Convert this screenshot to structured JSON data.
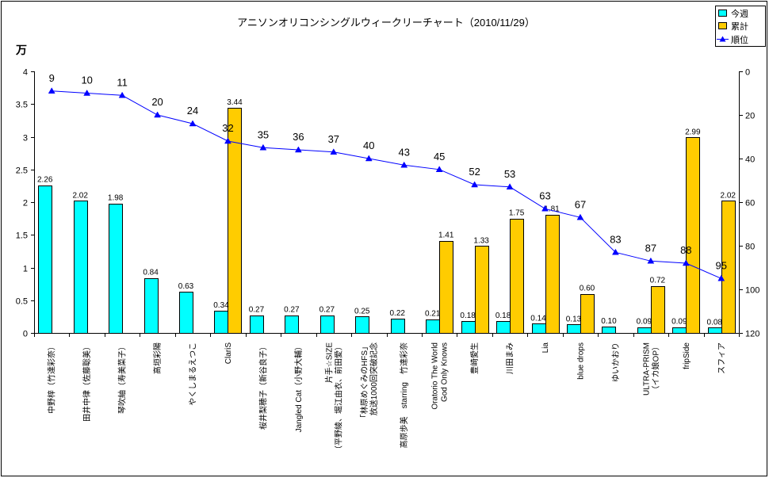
{
  "chart_data": {
    "type": "bar",
    "title": "アニソンオリコンシングルウィークリーチャート（2010/11/29）",
    "y_unit_label": "万",
    "ylim": [
      0,
      4
    ],
    "yticks": [
      "0",
      "0.5",
      "1",
      "1.5",
      "2",
      "2.5",
      "3",
      "3.5",
      "4"
    ],
    "y2lim": [
      0,
      120
    ],
    "y2_reversed": true,
    "y2ticks": [
      "0",
      "20",
      "40",
      "60",
      "80",
      "100",
      "120"
    ],
    "grid": false,
    "legend_position": "top-right",
    "categories": [
      "中野梓（竹達彩奈）",
      "田井中律（佐藤聡美）",
      "琴吹紬（寿美菜子）",
      "高垣彩陽",
      "やくしまるえつこ",
      "ClariS",
      "桜井梨穂子（新谷良子）",
      "Jangled Cat（小野大輔）",
      "片手☆SIZE\n（平野綾、堀江由衣、前田愛）",
      "「林原めぐみのHFS」\n放送1000回突破記念",
      "高原歩美　starring　竹達彩奈",
      "Oratorio The World\nGod Only Knows",
      "豊崎愛生",
      "川田まみ",
      "Lia",
      "blue drops",
      "ゆいかおり",
      "ULTRA-PRISM\n（イカ娘OP）",
      "fripSide",
      "スフィア"
    ],
    "series": [
      {
        "name": "今週",
        "type": "bar",
        "color": "#00FFFF",
        "values": [
          2.26,
          2.02,
          1.98,
          0.84,
          0.63,
          0.34,
          0.27,
          0.27,
          0.27,
          0.25,
          0.22,
          0.21,
          0.18,
          0.18,
          0.14,
          0.13,
          0.1,
          0.09,
          0.09,
          0.08
        ],
        "labels": [
          "2.26",
          "2.02",
          "1.98",
          "0.84",
          "0.63",
          "0.34",
          "0.27",
          "0.27",
          "0.27",
          "0.25",
          "0.22",
          "0.21",
          "0.18",
          "0.18",
          "0.14",
          "0.13",
          "0.10",
          "0.09",
          "0.09",
          "0.08"
        ]
      },
      {
        "name": "累計",
        "type": "bar",
        "color": "#FFCC00",
        "values": [
          null,
          null,
          null,
          null,
          null,
          3.44,
          null,
          null,
          null,
          null,
          null,
          1.41,
          1.33,
          1.75,
          1.81,
          0.6,
          null,
          0.72,
          2.99,
          2.02
        ],
        "labels": [
          null,
          null,
          null,
          null,
          null,
          "3.44",
          null,
          null,
          null,
          null,
          null,
          "1.41",
          "1.33",
          "1.75",
          "1.81",
          "0.60",
          null,
          "0.72",
          "2.99",
          "2.02"
        ]
      },
      {
        "name": "順位",
        "type": "line",
        "axis": "right",
        "marker": "triangle",
        "color": "#0000FF",
        "values": [
          9,
          10,
          11,
          20,
          24,
          32,
          35,
          36,
          37,
          40,
          43,
          45,
          52,
          53,
          63,
          67,
          83,
          87,
          88,
          95
        ]
      }
    ]
  }
}
